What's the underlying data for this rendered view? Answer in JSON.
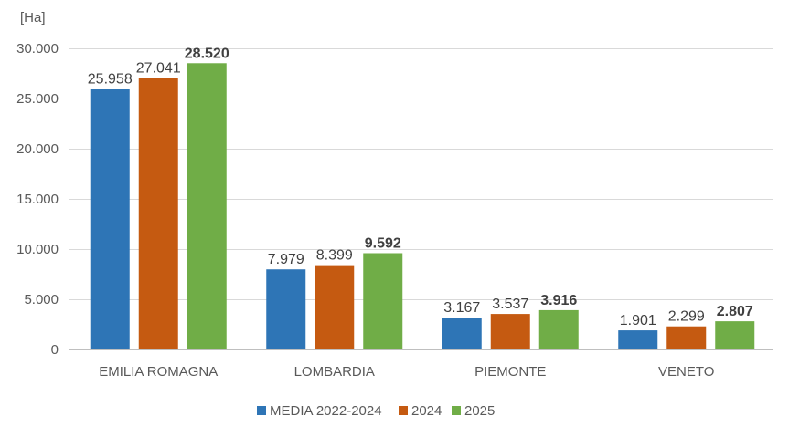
{
  "chart_data": {
    "type": "bar",
    "unit_label": "[Ha]",
    "categories": [
      "EMILIA ROMAGNA",
      "LOMBARDIA",
      "PIEMONTE",
      "VENETO"
    ],
    "series": [
      {
        "name": "MEDIA 2022-2024",
        "color": "#2E75B6",
        "values": [
          25958,
          7979,
          3167,
          1901
        ],
        "labels": [
          "25.958",
          "7.979",
          "3.167",
          "1.901"
        ],
        "bold": false
      },
      {
        "name": "2024",
        "color": "#C55A11",
        "values": [
          27041,
          8399,
          3537,
          2299
        ],
        "labels": [
          "27.041",
          "8.399",
          "3.537",
          "2.299"
        ],
        "bold": false
      },
      {
        "name": "2025",
        "color": "#70AD47",
        "values": [
          28520,
          9592,
          3916,
          2807
        ],
        "labels": [
          "28.520",
          "9.592",
          "3.916",
          "2.807"
        ],
        "bold": true
      }
    ],
    "y_ticks": [
      0,
      5000,
      10000,
      15000,
      20000,
      25000,
      30000
    ],
    "y_tick_labels": [
      "0",
      "5.000",
      "10.000",
      "15.000",
      "20.000",
      "25.000",
      "30.000"
    ],
    "ylim": [
      0,
      30000
    ],
    "grid": true,
    "legend_position": "bottom-center"
  }
}
